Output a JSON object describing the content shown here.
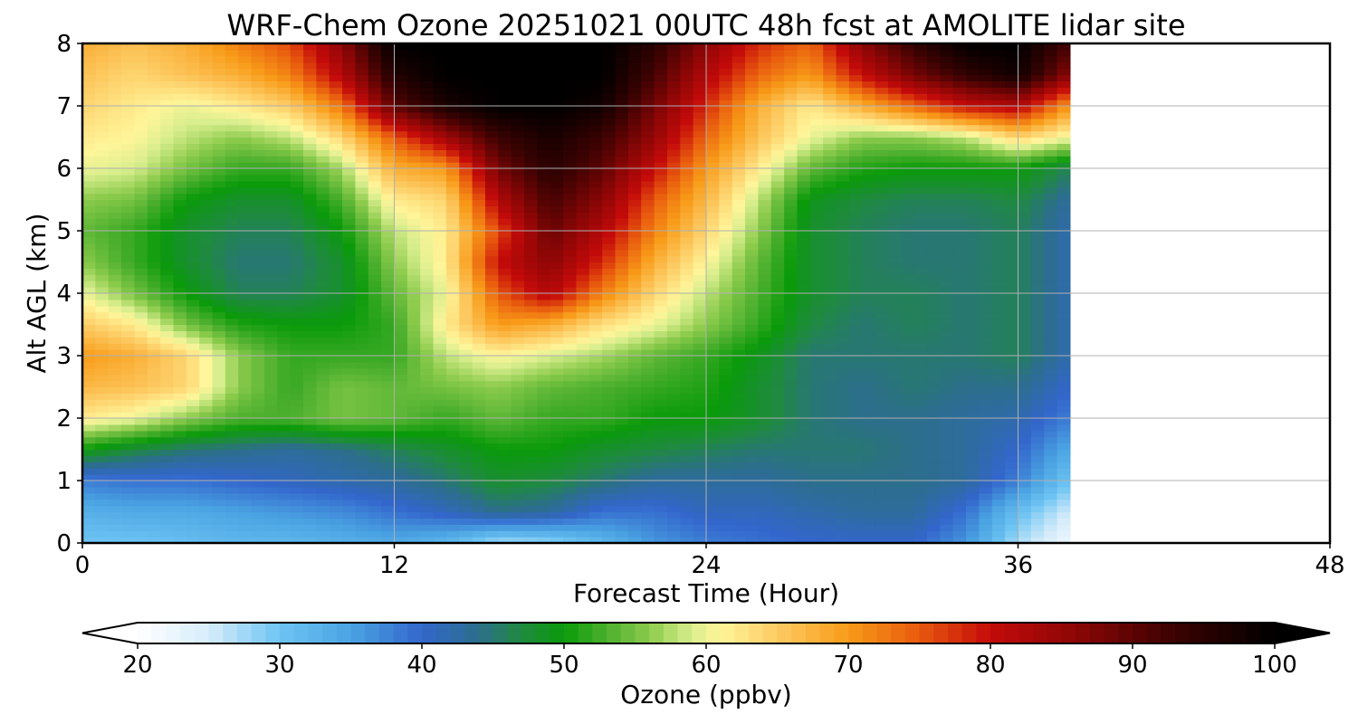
{
  "chart_data": {
    "type": "heatmap",
    "title": "WRF-Chem Ozone  20251021 00UTC 48h fcst at AMOLITE lidar site",
    "xlabel": "Forecast Time (Hour)",
    "ylabel": "Alt AGL (km)",
    "xlim": [
      0,
      48
    ],
    "ylim": [
      0,
      8
    ],
    "x_ticks": [
      0,
      12,
      24,
      36,
      48
    ],
    "y_ticks": [
      0,
      1,
      2,
      3,
      4,
      5,
      6,
      7,
      8
    ],
    "grid": true,
    "colorbar": {
      "label": "Ozone  (ppbv)",
      "orientation": "horizontal",
      "placement": "bottom",
      "range": [
        20,
        100
      ],
      "ticks": [
        20,
        30,
        40,
        50,
        60,
        70,
        80,
        90,
        100
      ],
      "extend": "both",
      "colors": [
        {
          "v": 20,
          "c": "#ffffff"
        },
        {
          "v": 25,
          "c": "#d6ecfa"
        },
        {
          "v": 30,
          "c": "#6ec4f3"
        },
        {
          "v": 35,
          "c": "#4aa3e2"
        },
        {
          "v": 40,
          "c": "#3366cc"
        },
        {
          "v": 44,
          "c": "#2c6e8c"
        },
        {
          "v": 47,
          "c": "#1f8a3f"
        },
        {
          "v": 50,
          "c": "#0a9a0a"
        },
        {
          "v": 53,
          "c": "#4caf2e"
        },
        {
          "v": 56,
          "c": "#8ccb4c"
        },
        {
          "v": 59,
          "c": "#d9ee8e"
        },
        {
          "v": 61,
          "c": "#fff59a"
        },
        {
          "v": 65,
          "c": "#fdcb63"
        },
        {
          "v": 70,
          "c": "#f89b18"
        },
        {
          "v": 75,
          "c": "#e8590e"
        },
        {
          "v": 80,
          "c": "#c40a0a"
        },
        {
          "v": 86,
          "c": "#8c0606"
        },
        {
          "v": 93,
          "c": "#3a0202"
        },
        {
          "v": 100,
          "c": "#000000"
        }
      ]
    },
    "data_end_hour": 38,
    "grid_data": {
      "hours": [
        0,
        2,
        4,
        6,
        8,
        10,
        12,
        14,
        16,
        18,
        20,
        22,
        24,
        26,
        28,
        30,
        32,
        34,
        36,
        38
      ],
      "alt_km": [
        0,
        0.5,
        1,
        1.5,
        2,
        2.5,
        3,
        3.5,
        4,
        4.5,
        5,
        5.5,
        6,
        6.5,
        7,
        7.5,
        8
      ],
      "ozone_ppbv": [
        [
          30,
          30,
          31,
          32,
          32,
          33,
          34,
          32,
          27,
          28,
          32,
          36,
          38,
          39,
          40,
          40,
          40,
          36,
          27,
          22
        ],
        [
          33,
          34,
          34,
          35,
          36,
          37,
          39,
          41,
          44,
          43,
          39,
          39,
          41,
          41,
          42,
          43,
          43,
          39,
          31,
          25
        ],
        [
          38,
          39,
          39,
          40,
          41,
          42,
          43,
          45,
          48,
          47,
          45,
          43,
          43,
          43,
          44,
          44,
          44,
          43,
          38,
          30
        ],
        [
          50,
          47,
          45,
          44,
          43,
          44,
          46,
          48,
          50,
          50,
          48,
          47,
          46,
          45,
          45,
          45,
          44,
          43,
          40,
          34
        ],
        [
          62,
          60,
          56,
          53,
          53,
          55,
          54,
          52,
          54,
          52,
          52,
          50,
          50,
          48,
          45,
          44,
          44,
          43,
          42,
          38
        ],
        [
          67,
          66,
          64,
          56,
          52,
          55,
          54,
          55,
          56,
          54,
          53,
          52,
          51,
          48,
          45,
          44,
          45,
          44,
          44,
          40
        ],
        [
          70,
          68,
          64,
          56,
          52,
          52,
          52,
          58,
          61,
          59,
          57,
          54,
          52,
          49,
          45,
          45,
          45,
          45,
          46,
          42
        ],
        [
          65,
          62,
          55,
          51,
          50,
          50,
          52,
          62,
          70,
          68,
          63,
          60,
          56,
          52,
          47,
          45,
          46,
          45,
          46,
          42
        ],
        [
          60,
          55,
          50,
          46,
          46,
          48,
          54,
          60,
          75,
          82,
          72,
          64,
          58,
          53,
          48,
          46,
          46,
          45,
          46,
          42
        ],
        [
          56,
          52,
          48,
          45,
          45,
          48,
          56,
          62,
          80,
          86,
          78,
          68,
          61,
          54,
          48,
          46,
          45,
          45,
          46,
          42
        ],
        [
          54,
          52,
          48,
          46,
          46,
          50,
          58,
          62,
          76,
          89,
          82,
          72,
          64,
          56,
          48,
          46,
          45,
          45,
          46,
          42
        ],
        [
          56,
          55,
          50,
          48,
          48,
          53,
          62,
          64,
          82,
          92,
          86,
          75,
          67,
          58,
          49,
          47,
          46,
          46,
          47,
          43
        ],
        [
          60,
          59,
          55,
          52,
          52,
          57,
          68,
          70,
          88,
          95,
          90,
          80,
          70,
          62,
          54,
          51,
          50,
          50,
          50,
          46
        ],
        [
          62,
          61,
          58,
          56,
          58,
          64,
          75,
          84,
          93,
          97,
          93,
          85,
          74,
          66,
          60,
          56,
          56,
          58,
          64,
          60
        ],
        [
          64,
          62,
          60,
          62,
          65,
          73,
          90,
          97,
          100,
          100,
          98,
          88,
          78,
          68,
          62,
          68,
          74,
          80,
          82,
          70
        ],
        [
          66,
          64,
          66,
          68,
          72,
          82,
          96,
          100,
          100,
          100,
          100,
          92,
          82,
          74,
          70,
          80,
          88,
          94,
          98,
          86
        ],
        [
          68,
          66,
          68,
          72,
          76,
          86,
          100,
          100,
          100,
          100,
          100,
          95,
          86,
          78,
          74,
          86,
          94,
          100,
          100,
          92
        ]
      ]
    }
  }
}
